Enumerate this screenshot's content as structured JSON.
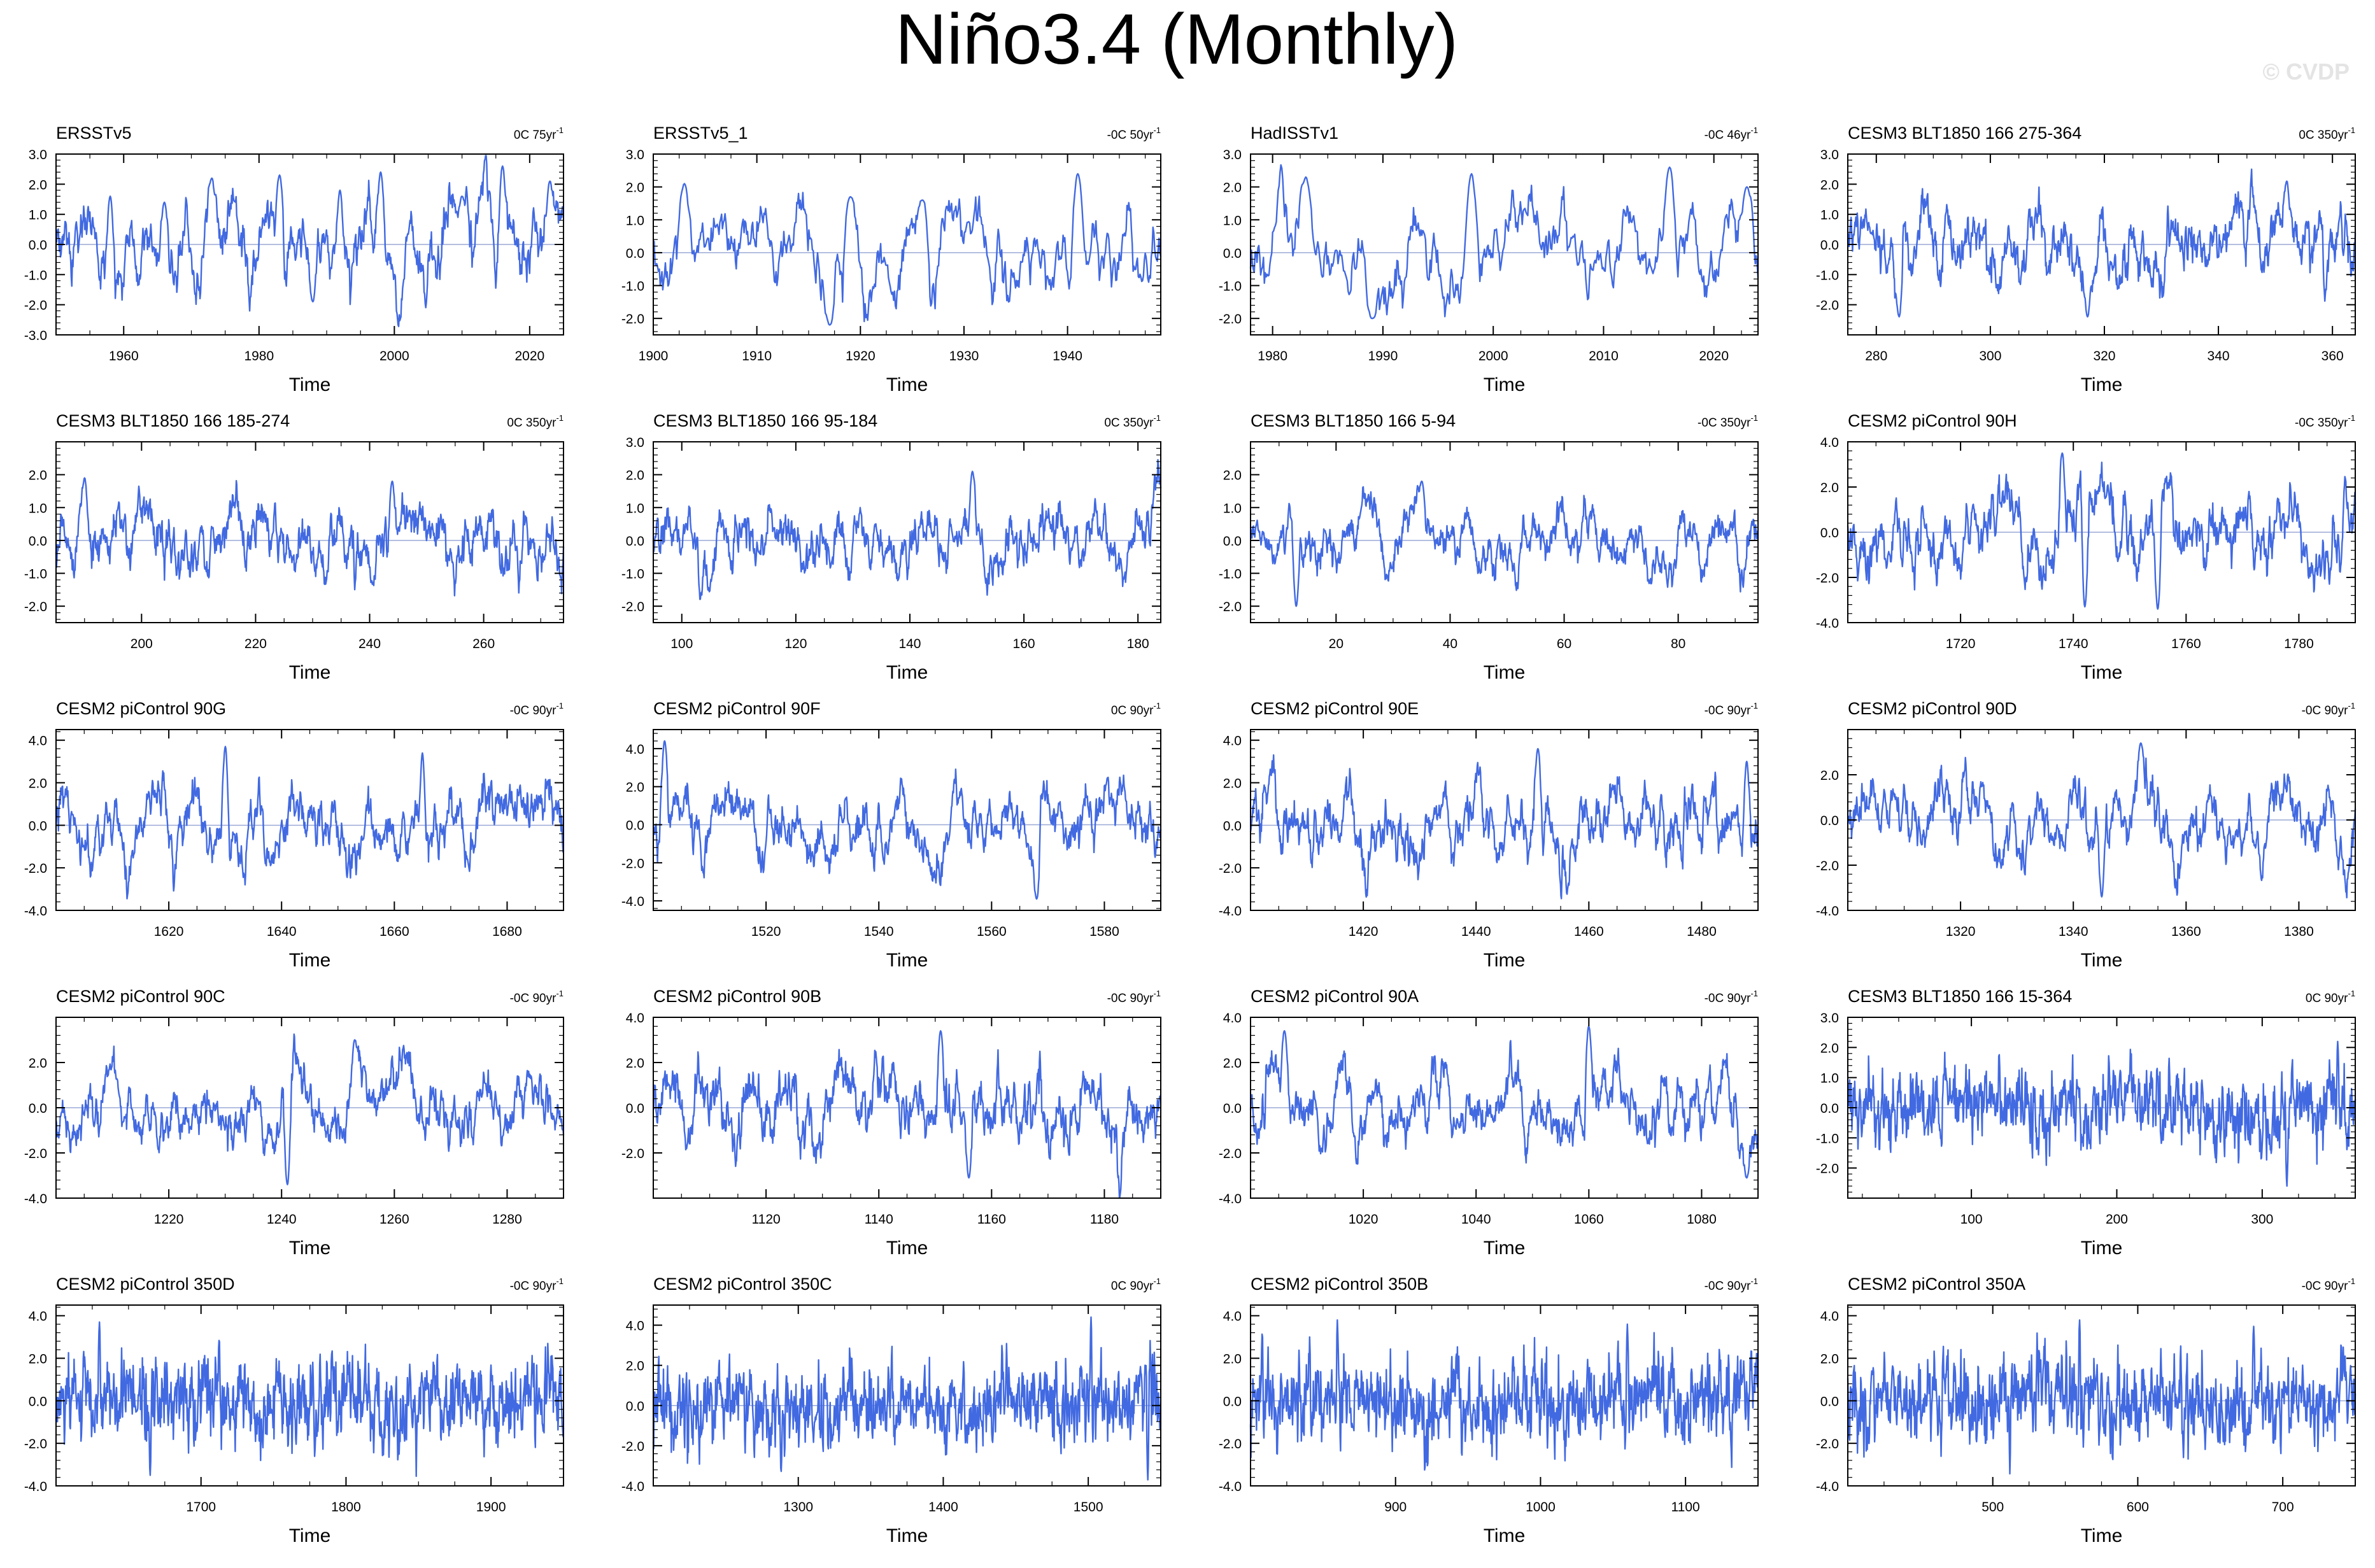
{
  "page": {
    "title": "Niño3.4 (Monthly)",
    "watermark": "© CVDP"
  },
  "style": {
    "line_color": "#4169e1",
    "axis_color": "#000000",
    "zero_line_color": "#9aa9d6",
    "background": "#ffffff"
  },
  "chart_data": [
    {
      "type": "line",
      "title": "ERSSTv5",
      "trend_label": "0C 75yr",
      "trend_sup": "-1",
      "xlabel": "Time",
      "xlim": [
        1950,
        2025
      ],
      "xticks": [
        1960,
        1980,
        2000,
        2020
      ],
      "ylim": [
        -3.0,
        3.0
      ],
      "yticks": [
        -3.0,
        -2.0,
        -1.0,
        0.0,
        1.0,
        2.0,
        3.0
      ],
      "ytick_labels": [
        "-3.0",
        "-2.0",
        "-1.0",
        "0.0",
        "1.0",
        "2.0",
        "3.0"
      ],
      "amplitude": 2.7,
      "series_peaks": [
        [
          1958,
          1.6
        ],
        [
          1966,
          1.4
        ],
        [
          1973,
          2.2
        ],
        [
          1983,
          2.3
        ],
        [
          1988,
          -1.9
        ],
        [
          1992,
          1.8
        ],
        [
          1998,
          2.4
        ],
        [
          2010,
          1.6
        ],
        [
          2016,
          2.6
        ],
        [
          2023,
          2.1
        ]
      ]
    },
    {
      "type": "line",
      "title": "ERSSTv5_1",
      "trend_label": "-0C 50yr",
      "trend_sup": "-1",
      "xlabel": "Time",
      "xlim": [
        1900,
        1949
      ],
      "xticks": [
        1900,
        1910,
        1920,
        1930,
        1940
      ],
      "ylim": [
        -2.5,
        3.0
      ],
      "yticks": [
        -2.0,
        -1.0,
        0.0,
        1.0,
        2.0,
        3.0
      ],
      "ytick_labels": [
        "-2.0",
        "-1.0",
        "0.0",
        "1.0",
        "2.0",
        "3.0"
      ],
      "amplitude": 2.3,
      "series_peaks": [
        [
          1903,
          2.1
        ],
        [
          1917,
          -2.2
        ],
        [
          1919,
          1.7
        ],
        [
          1926,
          1.6
        ],
        [
          1941,
          2.4
        ]
      ]
    },
    {
      "type": "line",
      "title": "HadISSTv1",
      "trend_label": "-0C 46yr",
      "trend_sup": "-1",
      "xlabel": "Time",
      "xlim": [
        1978,
        2024
      ],
      "xticks": [
        1980,
        1990,
        2000,
        2010,
        2020
      ],
      "ylim": [
        -2.5,
        3.0
      ],
      "yticks": [
        -2.0,
        -1.0,
        0.0,
        1.0,
        2.0,
        3.0
      ],
      "ytick_labels": [
        "-2.0",
        "-1.0",
        "0.0",
        "1.0",
        "2.0",
        "3.0"
      ],
      "amplitude": 2.5,
      "series_peaks": [
        [
          1983,
          2.3
        ],
        [
          1989,
          -2.0
        ],
        [
          1998,
          2.4
        ],
        [
          2016,
          2.6
        ],
        [
          2023,
          2.0
        ]
      ]
    },
    {
      "type": "line",
      "title": "CESM3 BLT1850 166 275-364",
      "trend_label": "0C 350yr",
      "trend_sup": "-1",
      "xlabel": "Time",
      "xlim": [
        275,
        364
      ],
      "xticks": [
        280,
        300,
        320,
        340,
        360
      ],
      "ylim": [
        -3.0,
        3.0
      ],
      "yticks": [
        -2.0,
        -1.0,
        0.0,
        1.0,
        2.0,
        3.0
      ],
      "ytick_labels": [
        "-2.0",
        "-1.0",
        "0.0",
        "1.0",
        "2.0",
        "3.0"
      ],
      "amplitude": 2.2,
      "series_peaks": [
        [
          284,
          -2.4
        ],
        [
          317,
          -2.4
        ],
        [
          352,
          2.1
        ]
      ]
    },
    {
      "type": "line",
      "title": "CESM3 BLT1850 166 185-274",
      "trend_label": "0C 350yr",
      "trend_sup": "-1",
      "xlabel": "Time",
      "xlim": [
        185,
        274
      ],
      "xticks": [
        200,
        220,
        240,
        260
      ],
      "ylim": [
        -2.5,
        3.0
      ],
      "yticks": [
        -2.0,
        -1.0,
        0.0,
        1.0,
        2.0
      ],
      "ytick_labels": [
        "-2.0",
        "-1.0",
        "0.0",
        "1.0",
        "2.0"
      ],
      "amplitude": 1.8,
      "series_peaks": [
        [
          190,
          1.9
        ],
        [
          244,
          1.8
        ]
      ]
    },
    {
      "type": "line",
      "title": "CESM3 BLT1850 166 95-184",
      "trend_label": "0C 350yr",
      "trend_sup": "-1",
      "xlabel": "Time",
      "xlim": [
        95,
        184
      ],
      "xticks": [
        100,
        120,
        140,
        160,
        180
      ],
      "ylim": [
        -2.5,
        3.0
      ],
      "yticks": [
        -2.0,
        -1.0,
        0.0,
        1.0,
        2.0,
        3.0
      ],
      "ytick_labels": [
        "-2.0",
        "-1.0",
        "0.0",
        "1.0",
        "2.0",
        "3.0"
      ],
      "amplitude": 1.8,
      "series_peaks": [
        [
          151,
          2.1
        ]
      ]
    },
    {
      "type": "line",
      "title": "CESM3 BLT1850 166 5-94",
      "trend_label": "-0C 350yr",
      "trend_sup": "-1",
      "xlabel": "Time",
      "xlim": [
        5,
        94
      ],
      "xticks": [
        20,
        40,
        60,
        80
      ],
      "ylim": [
        -2.5,
        3.0
      ],
      "yticks": [
        -2.0,
        -1.0,
        0.0,
        1.0,
        2.0
      ],
      "ytick_labels": [
        "-2.0",
        "-1.0",
        "0.0",
        "1.0",
        "2.0"
      ],
      "amplitude": 1.8,
      "series_peaks": [
        [
          13,
          -2.0
        ],
        [
          35,
          1.8
        ]
      ]
    },
    {
      "type": "line",
      "title": "CESM2 piControl 90H",
      "trend_label": "-0C 350yr",
      "trend_sup": "-1",
      "xlabel": "Time",
      "xlim": [
        1700,
        1790
      ],
      "xticks": [
        1720,
        1740,
        1760,
        1780
      ],
      "ylim": [
        -4.0,
        4.0
      ],
      "yticks": [
        -4.0,
        -2.0,
        0.0,
        2.0,
        4.0
      ],
      "ytick_labels": [
        "-4.0",
        "-2.0",
        "0.0",
        "2.0",
        "4.0"
      ],
      "amplitude": 3.4,
      "series_peaks": [
        [
          1738,
          3.5
        ],
        [
          1742,
          -3.3
        ],
        [
          1755,
          -3.4
        ]
      ]
    },
    {
      "type": "line",
      "title": "CESM2 piControl 90G",
      "trend_label": "-0C 90yr",
      "trend_sup": "-1",
      "xlabel": "Time",
      "xlim": [
        1600,
        1690
      ],
      "xticks": [
        1620,
        1640,
        1660,
        1680
      ],
      "ylim": [
        -4.0,
        4.5
      ],
      "yticks": [
        -4.0,
        -2.0,
        0.0,
        2.0,
        4.0
      ],
      "ytick_labels": [
        "-4.0",
        "-2.0",
        "0.0",
        "2.0",
        "4.0"
      ],
      "amplitude": 3.3,
      "series_peaks": [
        [
          1630,
          3.7
        ],
        [
          1665,
          -3.4
        ],
        [
          1665,
          3.4
        ]
      ]
    },
    {
      "type": "line",
      "title": "CESM2 piControl 90F",
      "trend_label": "0C 90yr",
      "trend_sup": "-1",
      "xlabel": "Time",
      "xlim": [
        1500,
        1590
      ],
      "xticks": [
        1520,
        1540,
        1560,
        1580
      ],
      "ylim": [
        -4.5,
        5.0
      ],
      "yticks": [
        -4.0,
        -2.0,
        0.0,
        2.0,
        4.0
      ],
      "ytick_labels": [
        "-4.0",
        "-2.0",
        "0.0",
        "2.0",
        "4.0"
      ],
      "amplitude": 3.4,
      "series_peaks": [
        [
          1502,
          4.4
        ],
        [
          1568,
          -3.9
        ]
      ]
    },
    {
      "type": "line",
      "title": "CESM2 piControl 90E",
      "trend_label": "-0C 90yr",
      "trend_sup": "-1",
      "xlabel": "Time",
      "xlim": [
        1400,
        1490
      ],
      "xticks": [
        1420,
        1440,
        1460,
        1480
      ],
      "ylim": [
        -4.0,
        4.5
      ],
      "yticks": [
        -4.0,
        -2.0,
        0.0,
        2.0,
        4.0
      ],
      "ytick_labels": [
        "-4.0",
        "-2.0",
        "0.0",
        "2.0",
        "4.0"
      ],
      "amplitude": 3.2,
      "series_peaks": [
        [
          1451,
          3.6
        ],
        [
          1488,
          3.0
        ]
      ]
    },
    {
      "type": "line",
      "title": "CESM2 piControl 90D",
      "trend_label": "-0C 90yr",
      "trend_sup": "-1",
      "xlabel": "Time",
      "xlim": [
        1300,
        1390
      ],
      "xticks": [
        1320,
        1340,
        1360,
        1380
      ],
      "ylim": [
        -4.0,
        4.0
      ],
      "yticks": [
        -4.0,
        -2.0,
        0.0,
        2.0
      ],
      "ytick_labels": [
        "-4.0",
        "-2.0",
        "0.0",
        "2.0"
      ],
      "amplitude": 3.2,
      "series_peaks": [
        [
          1345,
          -3.4
        ],
        [
          1352,
          3.4
        ]
      ]
    },
    {
      "type": "line",
      "title": "CESM2 piControl 90C",
      "trend_label": "-0C 90yr",
      "trend_sup": "-1",
      "xlabel": "Time",
      "xlim": [
        1200,
        1290
      ],
      "xticks": [
        1220,
        1240,
        1260,
        1280
      ],
      "ylim": [
        -4.0,
        4.0
      ],
      "yticks": [
        -4.0,
        -2.0,
        0.0,
        2.0
      ],
      "ytick_labels": [
        "-4.0",
        "-2.0",
        "0.0",
        "2.0"
      ],
      "amplitude": 3.0,
      "series_peaks": [
        [
          1241,
          -3.4
        ],
        [
          1253,
          3.0
        ]
      ]
    },
    {
      "type": "line",
      "title": "CESM2 piControl 90B",
      "trend_label": "-0C 90yr",
      "trend_sup": "-1",
      "xlabel": "Time",
      "xlim": [
        1100,
        1190
      ],
      "xticks": [
        1120,
        1140,
        1160,
        1180
      ],
      "ylim": [
        -4.0,
        4.0
      ],
      "yticks": [
        -2.0,
        0.0,
        2.0,
        4.0
      ],
      "ytick_labels": [
        "-2.0",
        "0.0",
        "2.0",
        "4.0"
      ],
      "amplitude": 3.0,
      "series_peaks": [
        [
          1151,
          3.4
        ],
        [
          1156,
          -3.1
        ]
      ]
    },
    {
      "type": "line",
      "title": "CESM2 piControl 90A",
      "trend_label": "-0C 90yr",
      "trend_sup": "-1",
      "xlabel": "Time",
      "xlim": [
        1000,
        1090
      ],
      "xticks": [
        1020,
        1040,
        1060,
        1080
      ],
      "ylim": [
        -4.0,
        4.0
      ],
      "yticks": [
        -4.0,
        -2.0,
        0.0,
        2.0,
        4.0
      ],
      "ytick_labels": [
        "-4.0",
        "-2.0",
        "0.0",
        "2.0",
        "4.0"
      ],
      "amplitude": 3.1,
      "series_peaks": [
        [
          1006,
          3.4
        ],
        [
          1060,
          3.6
        ],
        [
          1088,
          -3.1
        ]
      ]
    },
    {
      "type": "line",
      "title": "CESM3 BLT1850 166 15-364",
      "trend_label": "0C 90yr",
      "trend_sup": "-1",
      "xlabel": "Time",
      "xlim": [
        15,
        364
      ],
      "xticks": [
        100,
        200,
        300
      ],
      "ylim": [
        -3.0,
        3.0
      ],
      "yticks": [
        -2.0,
        -1.0,
        0.0,
        1.0,
        2.0,
        3.0
      ],
      "ytick_labels": [
        "-2.0",
        "-1.0",
        "0.0",
        "1.0",
        "2.0",
        "3.0"
      ],
      "amplitude": 2.0,
      "series_peaks": [
        [
          317,
          -2.6
        ],
        [
          352,
          2.2
        ]
      ]
    },
    {
      "type": "line",
      "title": "CESM2 piControl 350D",
      "trend_label": "-0C 90yr",
      "trend_sup": "-1",
      "xlabel": "Time",
      "xlim": [
        1600,
        1950
      ],
      "xticks": [
        1700,
        1800,
        1900
      ],
      "ylim": [
        -4.0,
        4.5
      ],
      "yticks": [
        -4.0,
        -2.0,
        0.0,
        2.0,
        4.0
      ],
      "ytick_labels": [
        "-4.0",
        "-2.0",
        "0.0",
        "2.0",
        "4.0"
      ],
      "amplitude": 3.1,
      "series_peaks": [
        [
          1630,
          3.7
        ],
        [
          1665,
          -3.5
        ]
      ]
    },
    {
      "type": "line",
      "title": "CESM2 piControl 350C",
      "trend_label": "0C 90yr",
      "trend_sup": "-1",
      "xlabel": "Time",
      "xlim": [
        1200,
        1550
      ],
      "xticks": [
        1300,
        1400,
        1500
      ],
      "ylim": [
        -4.0,
        5.0
      ],
      "yticks": [
        -4.0,
        -2.0,
        0.0,
        2.0,
        4.0
      ],
      "ytick_labels": [
        "-4.0",
        "-2.0",
        "0.0",
        "2.0",
        "4.0"
      ],
      "amplitude": 3.1,
      "series_peaks": [
        [
          1502,
          4.4
        ],
        [
          1541,
          -3.7
        ]
      ]
    },
    {
      "type": "line",
      "title": "CESM2 piControl 350B",
      "trend_label": "-0C 90yr",
      "trend_sup": "-1",
      "xlabel": "Time",
      "xlim": [
        800,
        1150
      ],
      "xticks": [
        900,
        1000,
        1100
      ],
      "ylim": [
        -4.0,
        4.5
      ],
      "yticks": [
        -4.0,
        -2.0,
        0.0,
        2.0,
        4.0
      ],
      "ytick_labels": [
        "-4.0",
        "-2.0",
        "0.0",
        "2.0",
        "4.0"
      ],
      "amplitude": 3.1,
      "series_peaks": [
        [
          860,
          3.8
        ],
        [
          1060,
          3.6
        ]
      ]
    },
    {
      "type": "line",
      "title": "CESM2 piControl 350A",
      "trend_label": "-0C 90yr",
      "trend_sup": "-1",
      "xlabel": "Time",
      "xlim": [
        400,
        750
      ],
      "xticks": [
        500,
        600,
        700
      ],
      "ylim": [
        -4.0,
        4.5
      ],
      "yticks": [
        -4.0,
        -2.0,
        0.0,
        2.0,
        4.0
      ],
      "ytick_labels": [
        "-4.0",
        "-2.0",
        "0.0",
        "2.0",
        "4.0"
      ],
      "amplitude": 3.1,
      "series_peaks": [
        [
          560,
          3.8
        ],
        [
          680,
          3.5
        ]
      ]
    }
  ]
}
